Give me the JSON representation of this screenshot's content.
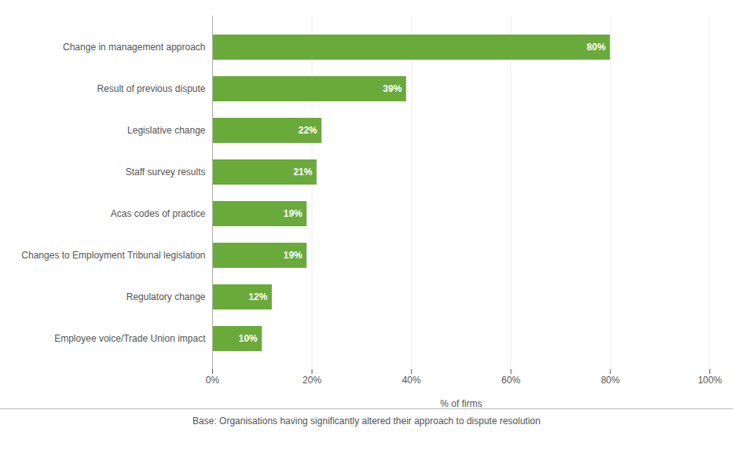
{
  "chart_data": {
    "type": "bar",
    "orientation": "horizontal",
    "categories": [
      "Employee voice/Trade Union impact",
      "Regulatory change",
      "Changes to Employment Tribunal legislation",
      "Acas codes of practice",
      "Staff survey results",
      "Legislative change",
      "Result of previous dispute",
      "Change in management approach"
    ],
    "values": [
      10,
      12,
      19,
      19,
      21,
      22,
      39,
      80
    ],
    "value_labels": [
      "10%",
      "12%",
      "19%",
      "19%",
      "21%",
      "22%",
      "39%",
      "80%"
    ],
    "data_labels": true,
    "color": "#6aaa3a",
    "xlabel": "% of firms",
    "xlim": [
      0,
      100
    ],
    "xticks": [
      {
        "value": 0,
        "label": "0%"
      },
      {
        "value": 20,
        "label": "20%"
      },
      {
        "value": 40,
        "label": "40%"
      },
      {
        "value": 60,
        "label": "60%"
      },
      {
        "value": 80,
        "label": "80%"
      },
      {
        "value": 100,
        "label": "100%"
      }
    ],
    "grid": true,
    "annotations": [
      "Base: Organisations having significantly altered their approach to dispute resolution"
    ]
  }
}
